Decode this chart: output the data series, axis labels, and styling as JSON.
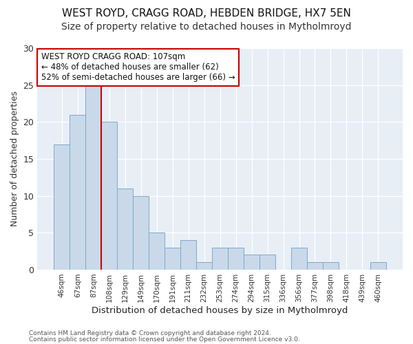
{
  "title1": "WEST ROYD, CRAGG ROAD, HEBDEN BRIDGE, HX7 5EN",
  "title2": "Size of property relative to detached houses in Mytholmroyd",
  "xlabel": "Distribution of detached houses by size in Mytholmroyd",
  "ylabel": "Number of detached properties",
  "categories": [
    "46sqm",
    "67sqm",
    "87sqm",
    "108sqm",
    "129sqm",
    "149sqm",
    "170sqm",
    "191sqm",
    "211sqm",
    "232sqm",
    "253sqm",
    "274sqm",
    "294sqm",
    "315sqm",
    "336sqm",
    "356sqm",
    "377sqm",
    "398sqm",
    "418sqm",
    "439sqm",
    "460sqm"
  ],
  "values": [
    17,
    21,
    25,
    20,
    11,
    10,
    5,
    3,
    4,
    1,
    3,
    3,
    2,
    2,
    0,
    3,
    1,
    1,
    0,
    0,
    1
  ],
  "bar_color": "#c9d9ea",
  "bar_edge_color": "#7aaaca",
  "vline_x": 3,
  "vline_color": "#cc0000",
  "annotation_text": "WEST ROYD CRAGG ROAD: 107sqm\n← 48% of detached houses are smaller (62)\n52% of semi-detached houses are larger (66) →",
  "annotation_box_color": "#ffffff",
  "annotation_box_edge": "#cc0000",
  "ylim": [
    0,
    30
  ],
  "yticks": [
    0,
    5,
    10,
    15,
    20,
    25,
    30
  ],
  "fig_bg": "#ffffff",
  "plot_bg": "#e8eef5",
  "title1_fontsize": 11,
  "title2_fontsize": 10,
  "footer1": "Contains HM Land Registry data © Crown copyright and database right 2024.",
  "footer2": "Contains public sector information licensed under the Open Government Licence v3.0."
}
